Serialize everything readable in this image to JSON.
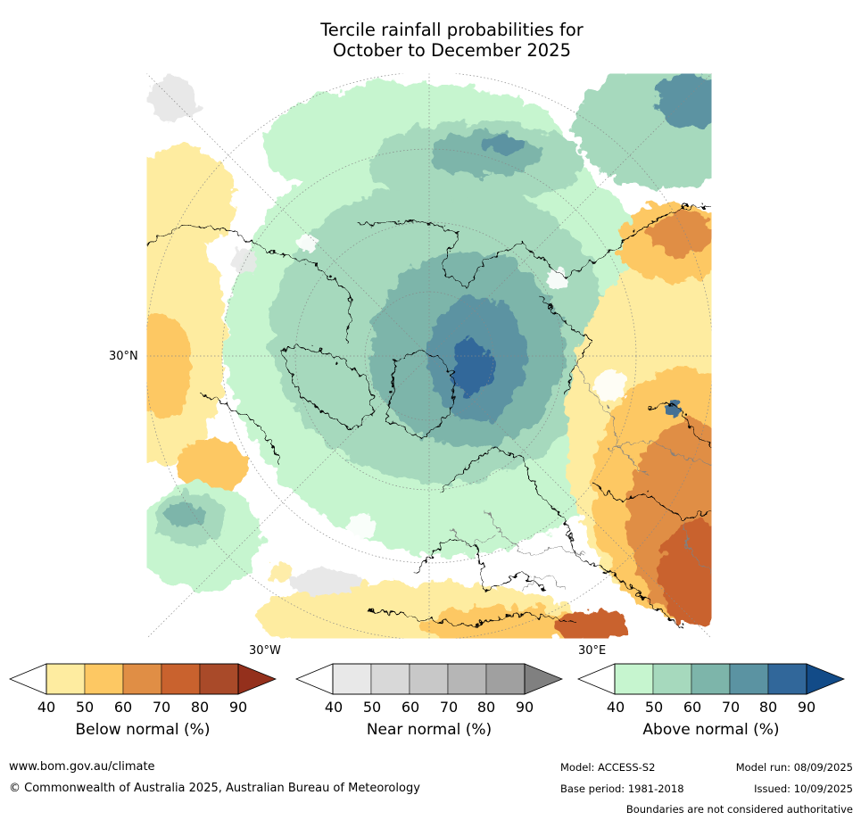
{
  "title": {
    "line1": "Tercile rainfall probabilities for",
    "line2": "October to December 2025"
  },
  "map": {
    "projection": "north-polar-stereographic",
    "lat_label": "30°N",
    "lon_labels": {
      "west": "30°W",
      "east": "30°E"
    },
    "colors": {
      "land_outline": "#000000",
      "border": "#808080",
      "graticule": "#888888"
    }
  },
  "colorbars": [
    {
      "name": "below",
      "label": "Below normal (%)",
      "ticks": [
        "40",
        "50",
        "60",
        "70",
        "80",
        "90"
      ],
      "colors": [
        "#ffffff",
        "#feeca0",
        "#fdc863",
        "#e08e45",
        "#c9622e",
        "#a94a29",
        "#94301c"
      ]
    },
    {
      "name": "near",
      "label": "Near normal (%)",
      "ticks": [
        "40",
        "50",
        "60",
        "70",
        "80",
        "90"
      ],
      "colors": [
        "#ffffff",
        "#e8e8e8",
        "#d8d8d8",
        "#c8c8c8",
        "#b6b6b6",
        "#a0a0a0",
        "#808080"
      ]
    },
    {
      "name": "above",
      "label": "Above normal (%)",
      "ticks": [
        "40",
        "50",
        "60",
        "70",
        "80",
        "90"
      ],
      "colors": [
        "#ffffff",
        "#c6f5cf",
        "#a6d9bd",
        "#7db5aa",
        "#5b93a2",
        "#31679a",
        "#124b88"
      ]
    }
  ],
  "footer": {
    "url": "www.bom.gov.au/climate",
    "copyright": "© Commonwealth of Australia 2025, Australian Bureau of Meteorology",
    "model": "Model: ACCESS-S2",
    "base_period": "Base period: 1981-2018",
    "model_run": "Model run: 08/09/2025",
    "issued": "Issued: 10/09/2025",
    "disclaimer": "Boundaries are not considered authoritative"
  }
}
